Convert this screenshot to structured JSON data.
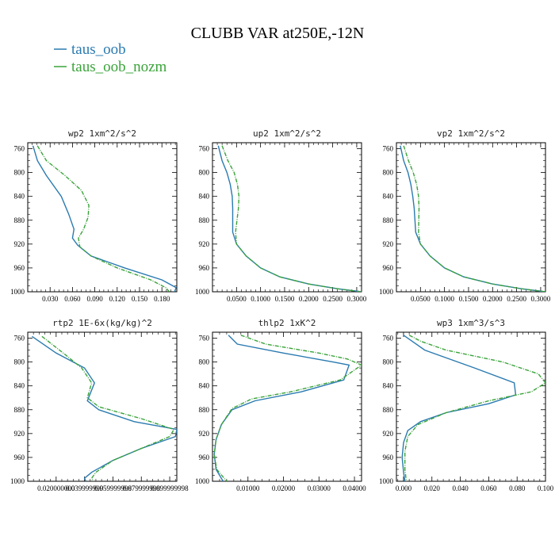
{
  "figure": {
    "title": "CLUBB VAR at250E,-12N",
    "legend": [
      {
        "label": "taus_oob",
        "color": "#2a7ab0"
      },
      {
        "label": "taus_oob_nozm",
        "color": "#3aa33a"
      }
    ]
  },
  "chart_data": [
    {
      "type": "line",
      "title": "wp2  1xm^2/s^2",
      "xlim": [
        0.0,
        0.2
      ],
      "ylim": [
        1000,
        750
      ],
      "yticks": [
        760,
        800,
        840,
        880,
        920,
        960,
        1000
      ],
      "xticks": [
        0.03,
        0.06,
        0.09,
        0.12,
        0.15,
        0.18
      ],
      "xtick_labels": [
        "0.030",
        "0.060",
        "0.090",
        "0.120",
        "0.150",
        "0.180"
      ],
      "series": [
        {
          "name": "taus_oob",
          "color": "#2a7ab0",
          "dash": false,
          "x": [
            0.007,
            0.013,
            0.025,
            0.045,
            0.055,
            0.062,
            0.06,
            0.067,
            0.085,
            0.13,
            0.18,
            0.199,
            0.197
          ],
          "y": [
            755,
            780,
            805,
            840,
            870,
            895,
            910,
            922,
            940,
            960,
            980,
            993,
            1000
          ]
        },
        {
          "name": "taus_oob_nozm",
          "color": "#3aa33a",
          "dash": true,
          "x": [
            0.013,
            0.025,
            0.05,
            0.072,
            0.082,
            0.081,
            0.075,
            0.068,
            0.07,
            0.085,
            0.12,
            0.165,
            0.185,
            0.19
          ],
          "y": [
            755,
            780,
            805,
            830,
            855,
            875,
            895,
            910,
            925,
            940,
            960,
            980,
            993,
            1000
          ]
        }
      ]
    },
    {
      "type": "line",
      "title": "up2  1xm^2/s^2",
      "xlim": [
        0.0,
        0.31
      ],
      "ylim": [
        1000,
        750
      ],
      "yticks": [
        760,
        800,
        840,
        880,
        920,
        960,
        1000
      ],
      "xticks": [
        0.05,
        0.1,
        0.15,
        0.2,
        0.25,
        0.3
      ],
      "xtick_labels": [
        "0.0500",
        "0.1000",
        "0.1500",
        "0.2000",
        "0.2500",
        "0.3000"
      ],
      "series": [
        {
          "name": "taus_oob",
          "color": "#2a7ab0",
          "dash": false,
          "x": [
            0.012,
            0.02,
            0.03,
            0.037,
            0.041,
            0.042,
            0.042,
            0.05,
            0.07,
            0.1,
            0.14,
            0.2,
            0.26,
            0.31
          ],
          "y": [
            755,
            780,
            800,
            820,
            840,
            860,
            900,
            920,
            940,
            960,
            975,
            987,
            995,
            1000
          ]
        },
        {
          "name": "taus_oob_nozm",
          "color": "#3aa33a",
          "dash": true,
          "x": [
            0.02,
            0.032,
            0.045,
            0.052,
            0.055,
            0.054,
            0.048,
            0.05,
            0.07,
            0.1,
            0.14,
            0.2,
            0.26,
            0.31
          ],
          "y": [
            755,
            780,
            800,
            820,
            840,
            860,
            900,
            920,
            940,
            960,
            975,
            987,
            995,
            1000
          ]
        }
      ]
    },
    {
      "type": "line",
      "title": "vp2  1xm^2/s^2",
      "xlim": [
        0.0,
        0.31
      ],
      "ylim": [
        1000,
        750
      ],
      "yticks": [
        760,
        800,
        840,
        880,
        920,
        960,
        1000
      ],
      "xticks": [
        0.05,
        0.1,
        0.15,
        0.2,
        0.25,
        0.3
      ],
      "xtick_labels": [
        "0.0500",
        "0.1000",
        "0.1500",
        "0.2000",
        "0.2500",
        "0.3000"
      ],
      "series": [
        {
          "name": "taus_oob",
          "color": "#2a7ab0",
          "dash": false,
          "x": [
            0.008,
            0.015,
            0.024,
            0.03,
            0.034,
            0.037,
            0.04,
            0.05,
            0.07,
            0.1,
            0.14,
            0.2,
            0.26,
            0.31
          ],
          "y": [
            755,
            780,
            800,
            820,
            840,
            860,
            900,
            920,
            940,
            960,
            975,
            987,
            995,
            1000
          ]
        },
        {
          "name": "taus_oob_nozm",
          "color": "#3aa33a",
          "dash": true,
          "x": [
            0.015,
            0.025,
            0.035,
            0.042,
            0.046,
            0.047,
            0.046,
            0.05,
            0.07,
            0.1,
            0.14,
            0.2,
            0.26,
            0.31
          ],
          "y": [
            755,
            780,
            800,
            820,
            840,
            860,
            900,
            920,
            940,
            960,
            975,
            987,
            995,
            1000
          ]
        }
      ]
    },
    {
      "type": "line",
      "title": "rtp2  1E-6x(kg/kg)^2",
      "xlim": [
        0.0,
        0.105
      ],
      "ylim": [
        1000,
        750
      ],
      "yticks": [
        760,
        800,
        840,
        880,
        920,
        960,
        1000
      ],
      "xticks": [
        0.02,
        0.04,
        0.06,
        0.08,
        0.1
      ],
      "xtick_labels": [
        "0.020000000",
        "0.039999999",
        "0.059999998",
        "0.079999998",
        "0.099999998"
      ],
      "series": [
        {
          "name": "taus_oob",
          "color": "#2a7ab0",
          "dash": false,
          "x": [
            0.003,
            0.02,
            0.04,
            0.047,
            0.042,
            0.05,
            0.075,
            0.105,
            0.104,
            0.08,
            0.06,
            0.045,
            0.04,
            0.041
          ],
          "y": [
            757,
            785,
            810,
            835,
            865,
            880,
            900,
            913,
            925,
            945,
            965,
            985,
            995,
            1000
          ]
        },
        {
          "name": "taus_oob_nozm",
          "color": "#3aa33a",
          "dash": true,
          "x": [
            0.01,
            0.025,
            0.038,
            0.045,
            0.042,
            0.05,
            0.08,
            0.103,
            0.1,
            0.08,
            0.06,
            0.048,
            0.045,
            0.046
          ],
          "y": [
            757,
            785,
            810,
            835,
            860,
            875,
            895,
            913,
            925,
            945,
            965,
            985,
            995,
            1000
          ]
        }
      ]
    },
    {
      "type": "line",
      "title": "thlp2  1xK^2",
      "xlim": [
        0.0,
        0.042
      ],
      "ylim": [
        1000,
        750
      ],
      "yticks": [
        760,
        800,
        840,
        880,
        920,
        960,
        1000
      ],
      "xticks": [
        0.01,
        0.02,
        0.03,
        0.04
      ],
      "xtick_labels": [
        "0.01000",
        "0.02000",
        "0.03000",
        "0.04000"
      ],
      "series": [
        {
          "name": "taus_oob",
          "color": "#2a7ab0",
          "dash": false,
          "x": [
            0.0045,
            0.007,
            0.02,
            0.034,
            0.0385,
            0.037,
            0.025,
            0.012,
            0.0055,
            0.0025,
            0.001,
            0.0005,
            0.001,
            0.003
          ],
          "y": [
            755,
            770,
            785,
            800,
            805,
            830,
            850,
            865,
            880,
            905,
            930,
            955,
            980,
            1000
          ]
        },
        {
          "name": "taus_oob_nozm",
          "color": "#3aa33a",
          "dash": true,
          "x": [
            0.008,
            0.015,
            0.03,
            0.038,
            0.042,
            0.036,
            0.022,
            0.011,
            0.0055,
            0.0025,
            0.001,
            0.0005,
            0.0012,
            0.004
          ],
          "y": [
            755,
            770,
            785,
            795,
            805,
            830,
            850,
            862,
            878,
            905,
            930,
            955,
            980,
            1000
          ]
        }
      ]
    },
    {
      "type": "line",
      "title": "wp3  1xm^3/s^3",
      "xlim": [
        -0.005,
        0.1
      ],
      "ylim": [
        1000,
        750
      ],
      "yticks": [
        760,
        800,
        840,
        880,
        920,
        960,
        1000
      ],
      "xticks": [
        0.0,
        0.02,
        0.04,
        0.06,
        0.08,
        0.1
      ],
      "xtick_labels": [
        "0.000",
        "0.020",
        "0.040",
        "0.060",
        "0.080",
        "0.100"
      ],
      "series": [
        {
          "name": "taus_oob",
          "color": "#2a7ab0",
          "dash": false,
          "x": [
            0.0,
            0.006,
            0.015,
            0.05,
            0.078,
            0.079,
            0.06,
            0.03,
            0.012,
            0.003,
            0.0,
            -0.001,
            0.0,
            0.001
          ],
          "y": [
            755,
            765,
            780,
            810,
            835,
            855,
            870,
            885,
            900,
            915,
            935,
            960,
            985,
            1000
          ]
        },
        {
          "name": "taus_oob_nozm",
          "color": "#3aa33a",
          "dash": true,
          "x": [
            0.004,
            0.012,
            0.03,
            0.07,
            0.095,
            0.1,
            0.09,
            0.06,
            0.03,
            0.01,
            0.003,
            0.001,
            0.001,
            0.002
          ],
          "y": [
            755,
            765,
            780,
            800,
            820,
            835,
            850,
            865,
            885,
            905,
            925,
            950,
            980,
            1000
          ]
        }
      ]
    }
  ]
}
